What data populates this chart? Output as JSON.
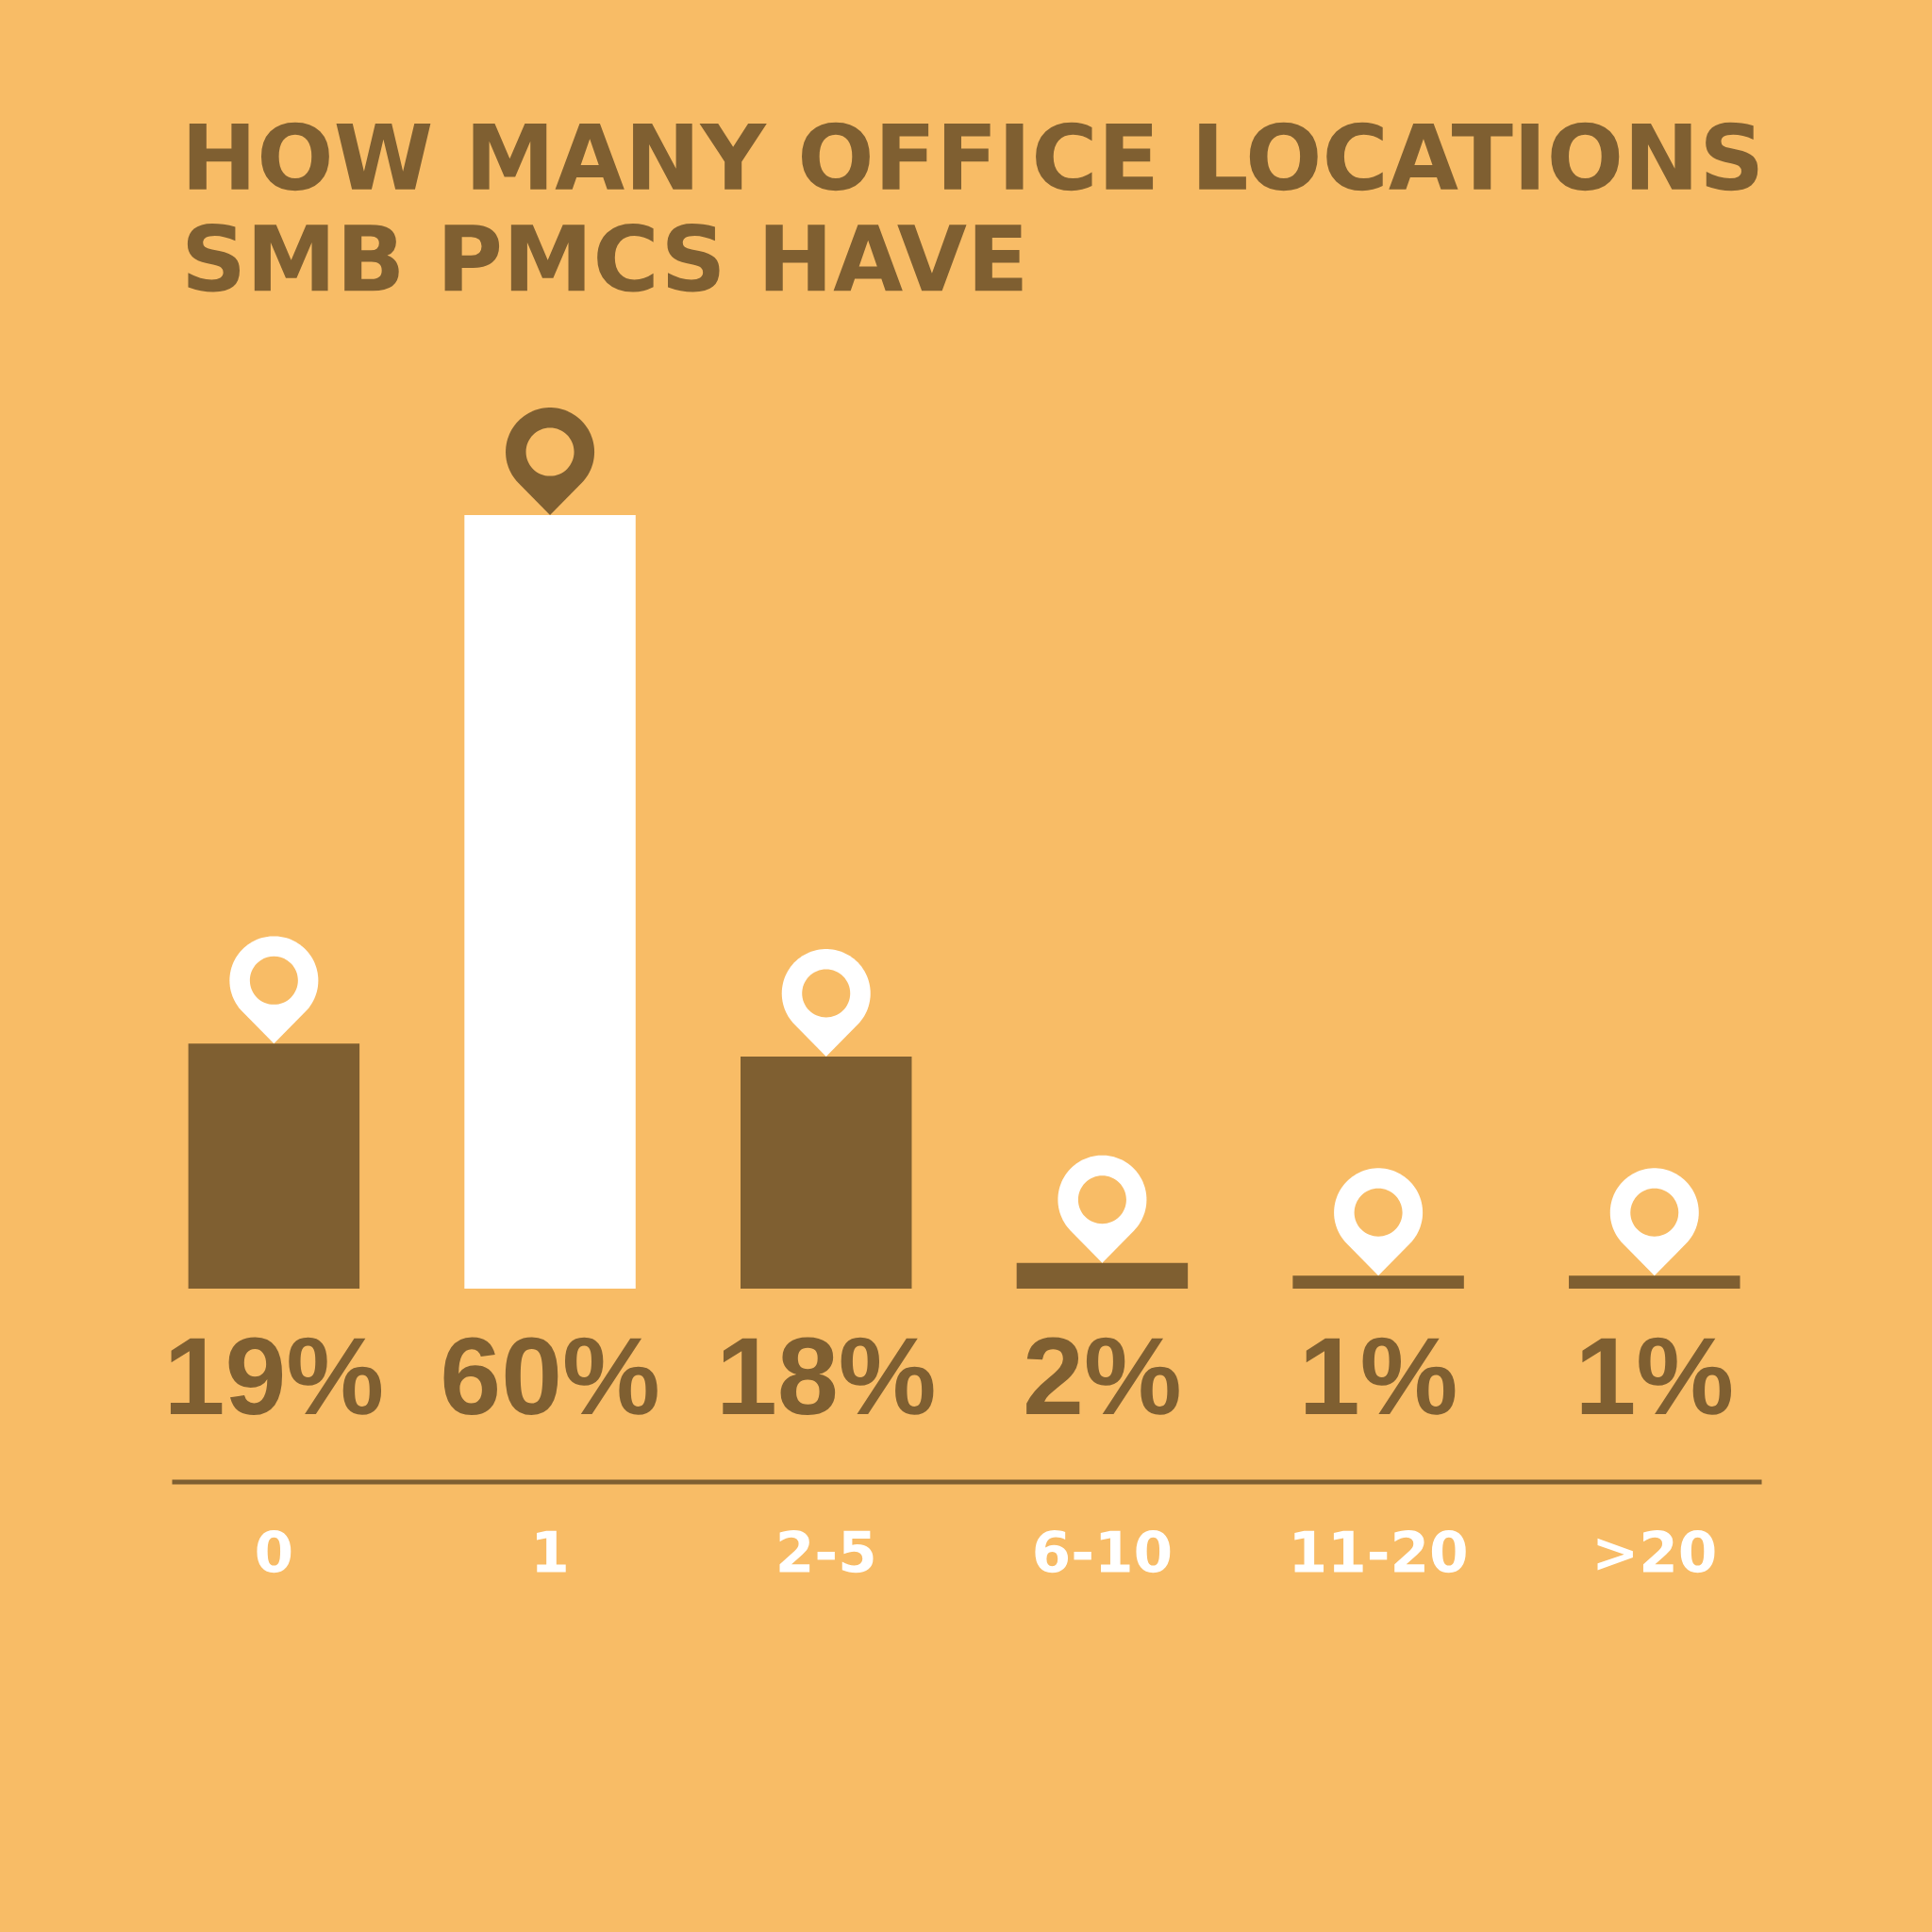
{
  "chart_data": {
    "type": "bar",
    "title": "HOW MANY OFFICE LOCATIONS\nSMB PMCS HAVE",
    "categories": [
      "0",
      "1",
      "2-5",
      "6-10",
      "11-20",
      ">20"
    ],
    "values": [
      19,
      60,
      18,
      2,
      1,
      1
    ],
    "colors": [
      "#7f5f31",
      "#ffffff",
      "#7f5f31",
      "#7f5f31",
      "#7f5f31",
      "#7f5f31"
    ],
    "value_labels": [
      "19%",
      "60%",
      "18%",
      "2%",
      "1%",
      "1%"
    ]
  }
}
